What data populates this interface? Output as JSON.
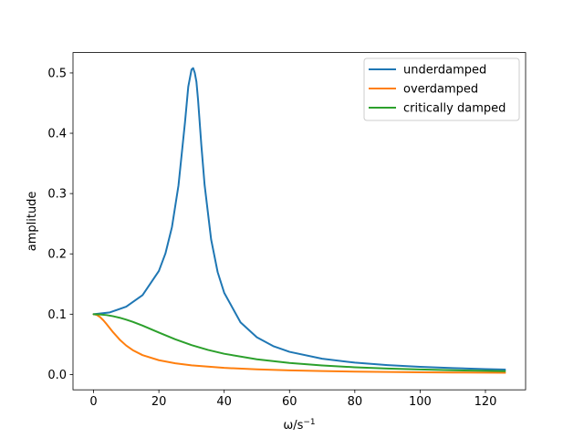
{
  "chart_data": {
    "type": "line",
    "xlabel_base": "ω/s",
    "xlabel_exp": "−1",
    "ylabel": "amplitude",
    "xlim": [
      -6.3,
      132.3
    ],
    "ylim": [
      -0.0254,
      0.5338
    ],
    "xticks": [
      0,
      20,
      40,
      60,
      80,
      100,
      120
    ],
    "yticks": [
      0.0,
      0.1,
      0.2,
      0.3,
      0.4,
      0.5
    ],
    "xtick_labels": [
      "0",
      "20",
      "40",
      "60",
      "80",
      "100",
      "120"
    ],
    "ytick_labels": [
      "0.0",
      "0.1",
      "0.2",
      "0.3",
      "0.4",
      "0.5"
    ],
    "grid": false,
    "legend_position": "top-right",
    "series": [
      {
        "name": "underdamped",
        "color": "#1f77b4",
        "x": [
          0,
          5,
          10,
          15,
          20,
          22,
          24,
          26,
          28,
          29,
          30,
          30.5,
          31,
          31.5,
          32,
          33,
          34,
          36,
          38,
          40,
          45,
          50,
          55,
          60,
          70,
          80,
          90,
          100,
          110,
          120,
          126
        ],
        "y": [
          0.1,
          0.103,
          0.1125,
          0.1316,
          0.1717,
          0.2006,
          0.2443,
          0.3134,
          0.4185,
          0.4774,
          0.5056,
          0.508,
          0.5,
          0.4853,
          0.4552,
          0.3805,
          0.3143,
          0.2238,
          0.1697,
          0.1355,
          0.0865,
          0.0617,
          0.0471,
          0.0376,
          0.0262,
          0.0197,
          0.0156,
          0.0127,
          0.0106,
          0.009,
          0.0082
        ]
      },
      {
        "name": "overdamped",
        "color": "#ff7f0e",
        "x": [
          0,
          1,
          2,
          3,
          4,
          5,
          6,
          8,
          10,
          12,
          15,
          20,
          25,
          30,
          40,
          50,
          60,
          70,
          80,
          90,
          100,
          110,
          120,
          126
        ],
        "y": [
          0.1,
          0.0987,
          0.0952,
          0.0899,
          0.0835,
          0.0767,
          0.0699,
          0.0578,
          0.048,
          0.0404,
          0.0321,
          0.0237,
          0.0186,
          0.0152,
          0.011,
          0.0085,
          0.0068,
          0.0057,
          0.0048,
          0.0042,
          0.0037,
          0.0033,
          0.003,
          0.0028
        ]
      },
      {
        "name": "critically damped",
        "color": "#2ca02c",
        "x": [
          0,
          2,
          4,
          6,
          8,
          10,
          12,
          15,
          20,
          25,
          30,
          35,
          40,
          50,
          60,
          70,
          80,
          90,
          100,
          110,
          120,
          126
        ],
        "y": [
          0.1,
          0.0996,
          0.0985,
          0.0966,
          0.0941,
          0.0909,
          0.0873,
          0.0811,
          0.0696,
          0.0584,
          0.0488,
          0.0408,
          0.0344,
          0.0252,
          0.0191,
          0.015,
          0.012,
          0.0099,
          0.0083,
          0.0071,
          0.0061,
          0.0056
        ]
      }
    ]
  }
}
